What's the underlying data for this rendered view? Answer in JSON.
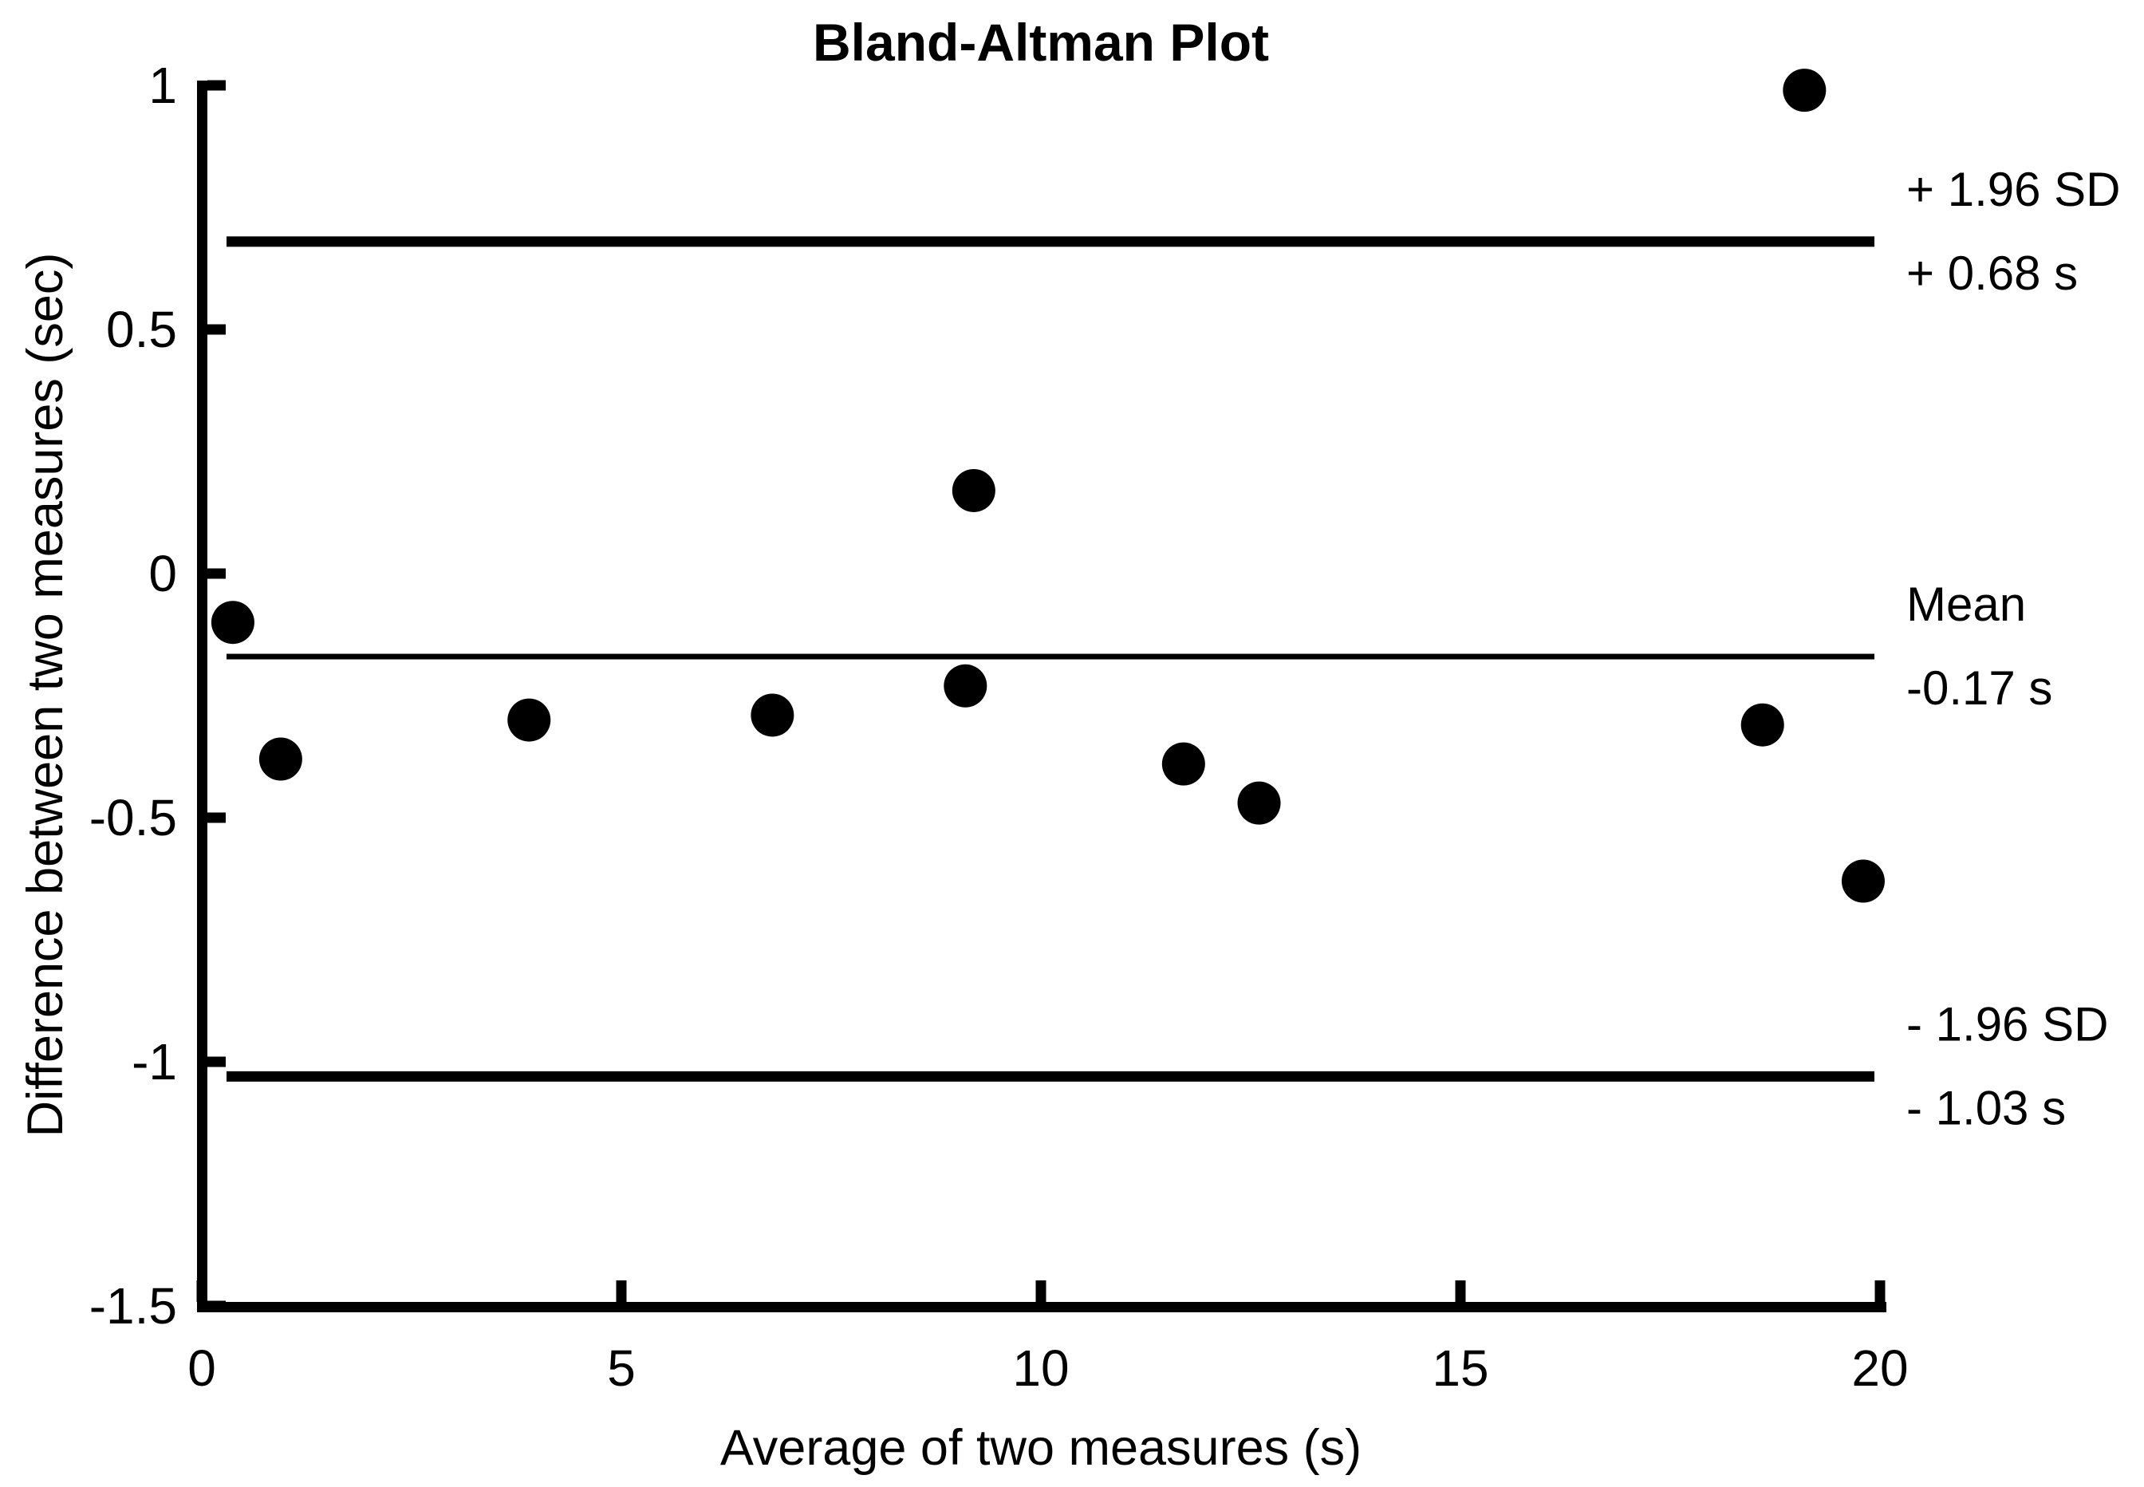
{
  "figure": {
    "title": "Bland-Altman Plot",
    "x_axis_label": "Average of two measures (s)",
    "y_axis_label": "Difference between two measures (sec)"
  },
  "chart_data": {
    "type": "scatter",
    "title": "Bland-Altman Plot",
    "xlabel": "Average of two measures (s)",
    "ylabel": "Difference between two measures (sec)",
    "xlim": [
      0,
      20
    ],
    "ylim": [
      -1.5,
      1
    ],
    "x_ticks": [
      0,
      5,
      10,
      15,
      20
    ],
    "x_tick_labels": [
      "0",
      "5",
      "10",
      "15",
      "20"
    ],
    "y_ticks": [
      1,
      0.5,
      0,
      -0.5,
      -1,
      -1.5
    ],
    "y_tick_labels": [
      "1",
      "0.5",
      "0",
      "-0.5",
      "-1",
      "-1.5"
    ],
    "grid": false,
    "legend": "none",
    "marker": {
      "shape": "circle",
      "color": "#000000"
    },
    "points": [
      {
        "x": 0.37,
        "y": -0.1
      },
      {
        "x": 0.94,
        "y": -0.38
      },
      {
        "x": 3.9,
        "y": -0.3
      },
      {
        "x": 6.8,
        "y": -0.29
      },
      {
        "x": 9.1,
        "y": -0.23
      },
      {
        "x": 9.2,
        "y": 0.17
      },
      {
        "x": 11.7,
        "y": -0.39
      },
      {
        "x": 12.6,
        "y": -0.47
      },
      {
        "x": 18.6,
        "y": -0.31
      },
      {
        "x": 19.1,
        "y": 0.99
      },
      {
        "x": 19.8,
        "y": -0.63
      }
    ],
    "reference_lines": [
      {
        "id": "upper-loa",
        "value": 0.68,
        "style": "thick",
        "label_above": "+ 1.96 SD",
        "label_below": "+ 0.68 s"
      },
      {
        "id": "mean",
        "value": -0.17,
        "style": "thin",
        "label_above": "Mean",
        "label_below": "-0.17 s"
      },
      {
        "id": "lower-loa",
        "value": -1.03,
        "style": "thick",
        "label_above": "- 1.96 SD",
        "label_below": "- 1.03 s"
      }
    ]
  },
  "colors": {
    "foreground": "#000000",
    "background": "#ffffff"
  }
}
